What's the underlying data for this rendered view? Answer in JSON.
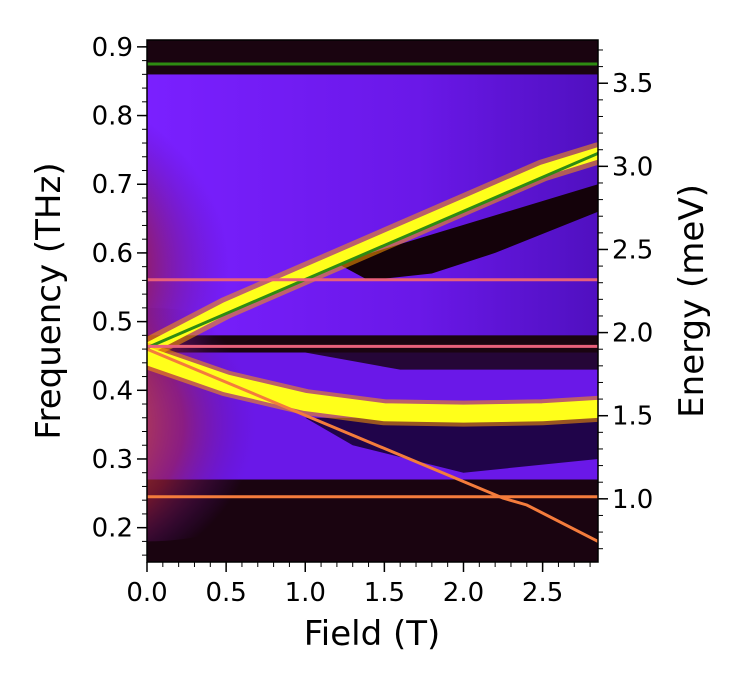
{
  "chart_data": {
    "type": "heatmap",
    "title": "",
    "xlabel": "Field (T)",
    "ylabel": "Frequency (THz)",
    "y2label": "Energy (meV)",
    "xlim": [
      0.0,
      2.85
    ],
    "ylim": [
      0.15,
      0.91
    ],
    "y2lim": [
      0.62,
      3.76
    ],
    "xticks": [
      0.0,
      0.5,
      1.0,
      1.5,
      2.0,
      2.5
    ],
    "xtick_labels": [
      "0.0",
      "0.5",
      "1.0",
      "1.5",
      "2.0",
      "2.5"
    ],
    "yticks": [
      0.2,
      0.3,
      0.4,
      0.5,
      0.6,
      0.7,
      0.8,
      0.9
    ],
    "ytick_labels": [
      "0.2",
      "0.3",
      "0.4",
      "0.5",
      "0.6",
      "0.7",
      "0.8",
      "0.9"
    ],
    "y2ticks": [
      1.0,
      1.5,
      2.0,
      2.5,
      3.0,
      3.5
    ],
    "y2tick_labels": [
      "1.0",
      "1.5",
      "2.0",
      "2.5",
      "3.0",
      "3.5"
    ],
    "colormap": "gnuplot",
    "colors": {
      "background": "#1a0410",
      "low": "#2a0030",
      "mid": "#7b1fff",
      "high": "#ffff1a",
      "warm": "#c0360c"
    },
    "bright_bands": [
      {
        "name": "rising-mode",
        "x": [
          0.0,
          0.5,
          1.0,
          1.5,
          2.0,
          2.5,
          2.85
        ],
        "y": [
          0.46,
          0.52,
          0.57,
          0.62,
          0.67,
          0.72,
          0.745
        ]
      },
      {
        "name": "falling-mode",
        "x": [
          0.0,
          0.5,
          1.0,
          1.5,
          2.0,
          2.5,
          2.85
        ],
        "y": [
          0.45,
          0.41,
          0.383,
          0.368,
          0.366,
          0.368,
          0.373
        ]
      }
    ],
    "series": [
      {
        "name": "green-top",
        "color": "#2e8b12",
        "x": [
          0.0,
          2.85
        ],
        "y": [
          0.875,
          0.875
        ]
      },
      {
        "name": "green-rising",
        "color": "#2e8b12",
        "x": [
          0.0,
          2.85
        ],
        "y": [
          0.462,
          0.745
        ]
      },
      {
        "name": "pink-upper",
        "color": "#e8607a",
        "x": [
          0.0,
          2.85
        ],
        "y": [
          0.561,
          0.561
        ]
      },
      {
        "name": "pink-middle",
        "color": "#e8607a",
        "x": [
          0.0,
          2.85
        ],
        "y": [
          0.464,
          0.464
        ]
      },
      {
        "name": "orange-falling",
        "color": "#f47c3c",
        "x": [
          0.0,
          2.25,
          2.4,
          2.85
        ],
        "y": [
          0.46,
          0.243,
          0.233,
          0.18
        ]
      },
      {
        "name": "orange-lower",
        "color": "#f47c3c",
        "x": [
          0.0,
          2.85
        ],
        "y": [
          0.245,
          0.245
        ]
      }
    ]
  }
}
